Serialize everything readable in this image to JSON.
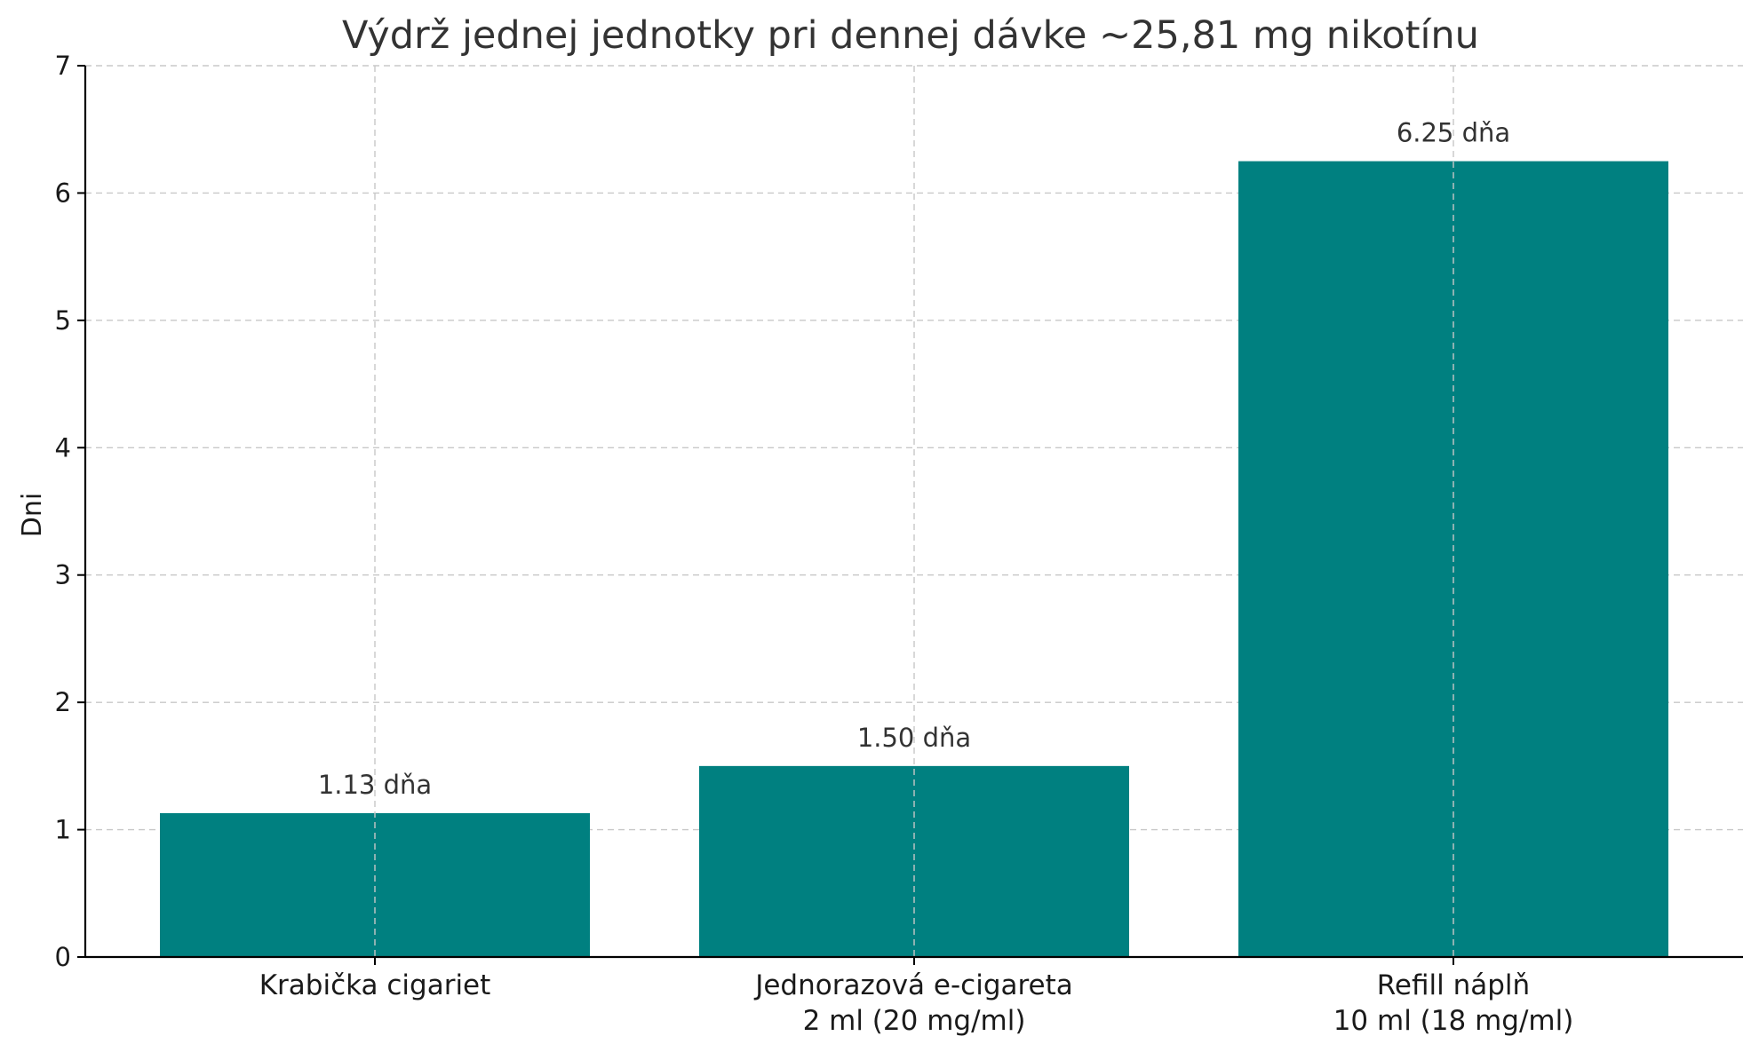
{
  "chart_data": {
    "type": "bar",
    "title": "Výdrž jednej jednotky pri dennej dávke ~25,81 mg nikotínu",
    "xlabel": "",
    "ylabel": "Dni",
    "ylim": [
      0,
      7
    ],
    "yticks": [
      "0",
      "1",
      "2",
      "3",
      "4",
      "5",
      "6",
      "7"
    ],
    "grid": true,
    "bar_color": "#008080",
    "categories": [
      [
        "Krabička cigariet"
      ],
      [
        "Jednorazová e-cigareta",
        "2 ml (20 mg/ml)"
      ],
      [
        "Refill náplň",
        "10 ml (18 mg/ml)"
      ]
    ],
    "values": [
      1.13,
      1.5,
      6.25
    ],
    "data_labels": [
      "1.13 dňa",
      "1.50 dňa",
      "6.25 dňa"
    ]
  }
}
